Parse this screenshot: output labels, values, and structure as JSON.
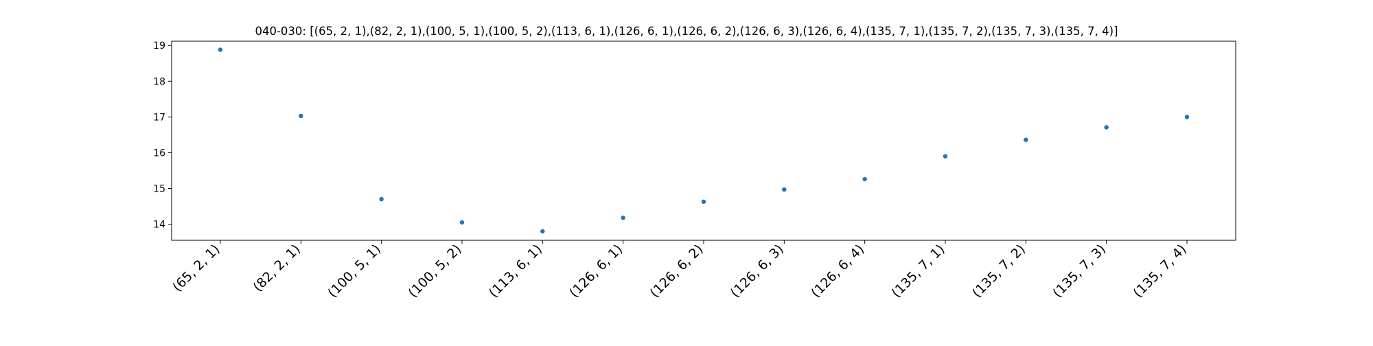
{
  "chart_data": {
    "type": "scatter",
    "title": "040-030: [(65, 2, 1),(82, 2, 1),(100, 5, 1),(100, 5, 2),(113, 6, 1),(126, 6, 1),(126, 6, 2),(126, 6, 3),(126, 6, 4),(135, 7, 1),(135, 7, 2),(135, 7, 3),(135, 7, 4)]",
    "xlabel": "",
    "ylabel": "",
    "categories": [
      "(65, 2, 1)",
      "(82, 2, 1)",
      "(100, 5, 1)",
      "(100, 5, 2)",
      "(113, 6, 1)",
      "(126, 6, 1)",
      "(126, 6, 2)",
      "(126, 6, 3)",
      "(126, 6, 4)",
      "(135, 7, 1)",
      "(135, 7, 2)",
      "(135, 7, 3)",
      "(135, 7, 4)"
    ],
    "values": [
      18.88,
      17.03,
      14.7,
      14.05,
      13.8,
      14.18,
      14.63,
      14.97,
      15.26,
      15.9,
      16.36,
      16.71,
      17.0
    ],
    "ylim": [
      13.55,
      19.12
    ],
    "yticks": [
      14,
      15,
      16,
      17,
      18,
      19
    ],
    "grid": false,
    "legend": "none",
    "colors": {
      "marker": "#1f77b4",
      "axis": "#000000"
    }
  }
}
